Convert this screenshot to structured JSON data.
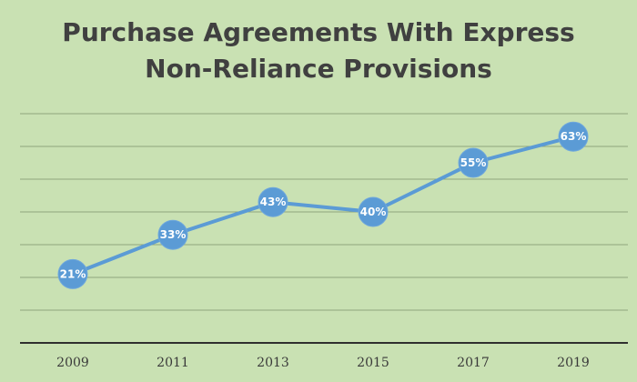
{
  "chart_data": {
    "type": "line",
    "title": "Purchase Agreements With Express Non-Reliance Provisions",
    "title_lines": [
      "Purchase Agreements With Express",
      "Non-Reliance Provisions"
    ],
    "categories": [
      "2009",
      "2011",
      "2013",
      "2015",
      "2017",
      "2019"
    ],
    "series": [
      {
        "values": [
          21,
          33,
          43,
          40,
          55,
          63
        ]
      }
    ],
    "data_labels": [
      "21%",
      "33%",
      "43%",
      "40%",
      "55%",
      "63%"
    ],
    "xlabel": "",
    "ylabel": "",
    "ylim": [
      0,
      70
    ],
    "grid": true,
    "legend": "none",
    "colors": {
      "background": "#c9e1b3",
      "series": "#5b9bd5",
      "grid": "#8fa57c",
      "title": "#404040"
    }
  }
}
